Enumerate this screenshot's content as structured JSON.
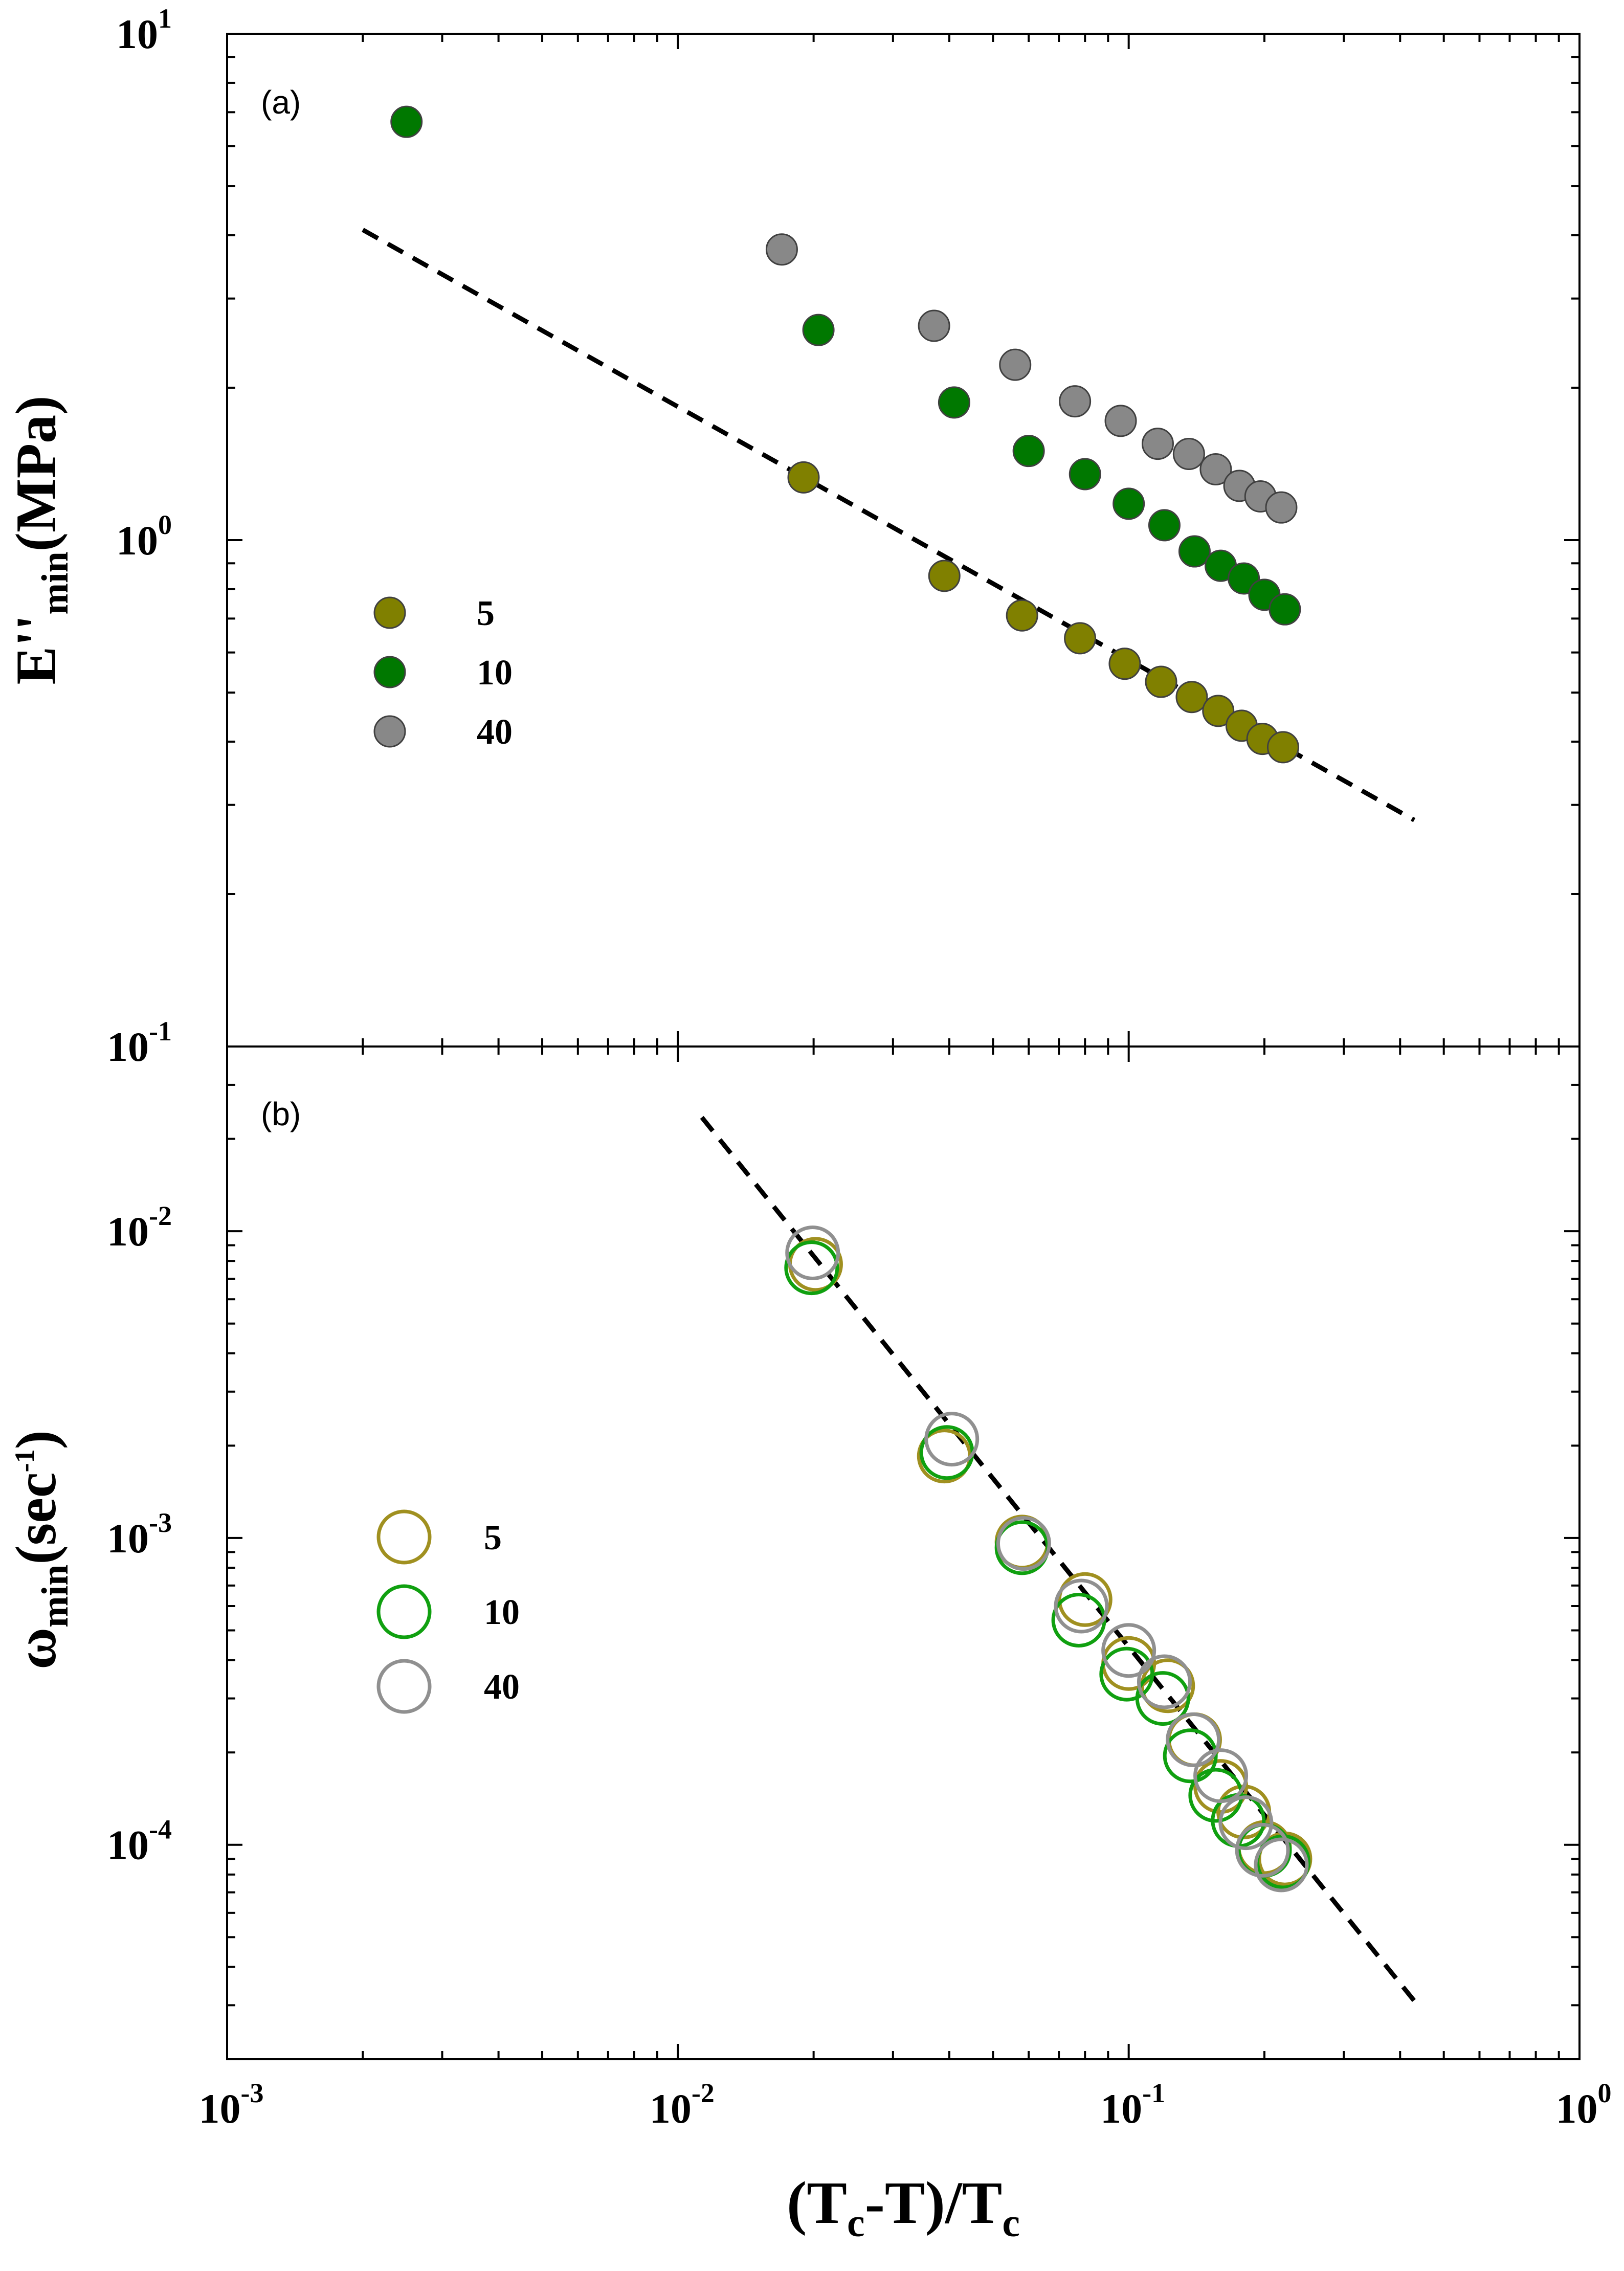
{
  "figure": {
    "x_axis_label": {
      "main": "(T",
      "sub1": "c",
      "mid": "-T)/T",
      "sub2": "c"
    },
    "x_tick_labels": [
      {
        "base": "10",
        "exp": "-3",
        "value": 0.001
      },
      {
        "base": "10",
        "exp": "-2",
        "value": 0.01
      },
      {
        "base": "10",
        "exp": "-1",
        "value": 0.1
      },
      {
        "base": "10",
        "exp": "0",
        "value": 1
      }
    ]
  },
  "chart_data": [
    {
      "type": "scatter",
      "panel_label": "(a)",
      "ylabel": {
        "main": "E''",
        "sub": "min",
        "unit": "(MPa)"
      },
      "xscale": "log",
      "yscale": "log",
      "xlim": [
        0.001,
        1
      ],
      "ylim": [
        0.1,
        10
      ],
      "y_tick_labels": [
        {
          "base": "10",
          "exp": "-1",
          "value": 0.1
        },
        {
          "base": "10",
          "exp": "0",
          "value": 1
        },
        {
          "base": "10",
          "exp": "1",
          "value": 10
        }
      ],
      "marker": "filled-circle",
      "series": [
        {
          "name": "5",
          "color": "#808000",
          "points": [
            [
              0.019,
              1.33
            ],
            [
              0.039,
              0.85
            ],
            [
              0.058,
              0.71
            ],
            [
              0.078,
              0.64
            ],
            [
              0.098,
              0.57
            ],
            [
              0.118,
              0.525
            ],
            [
              0.138,
              0.49
            ],
            [
              0.158,
              0.46
            ],
            [
              0.178,
              0.43
            ],
            [
              0.198,
              0.405
            ],
            [
              0.22,
              0.39
            ]
          ]
        },
        {
          "name": "10",
          "color": "#007800",
          "points": [
            [
              0.0025,
              6.7
            ],
            [
              0.0205,
              2.6
            ],
            [
              0.041,
              1.87
            ],
            [
              0.06,
              1.5
            ],
            [
              0.08,
              1.35
            ],
            [
              0.1,
              1.18
            ],
            [
              0.12,
              1.07
            ],
            [
              0.14,
              0.95
            ],
            [
              0.16,
              0.89
            ],
            [
              0.18,
              0.84
            ],
            [
              0.2,
              0.78
            ],
            [
              0.222,
              0.73
            ]
          ]
        },
        {
          "name": "40",
          "color": "#888888",
          "points": [
            [
              0.017,
              3.75
            ],
            [
              0.037,
              2.65
            ],
            [
              0.056,
              2.22
            ],
            [
              0.076,
              1.88
            ],
            [
              0.096,
              1.72
            ],
            [
              0.116,
              1.55
            ],
            [
              0.136,
              1.48
            ],
            [
              0.156,
              1.38
            ],
            [
              0.176,
              1.28
            ],
            [
              0.196,
              1.22
            ],
            [
              0.218,
              1.16
            ]
          ]
        }
      ],
      "fit_line": {
        "style": "dashed",
        "color": "#000000",
        "points": [
          [
            0.002,
            4.1
          ],
          [
            0.43,
            0.28
          ]
        ]
      },
      "legend": {
        "placement": "left-middle",
        "entries": [
          "5",
          "10",
          "40"
        ]
      }
    },
    {
      "type": "scatter",
      "panel_label": "(b)",
      "ylabel": {
        "main": "ω",
        "sub": "min",
        "unit_open": "(sec",
        "unit_exp": "-1",
        "unit_close": ")"
      },
      "xscale": "log",
      "yscale": "log",
      "xlim": [
        0.001,
        1
      ],
      "ylim": [
        2e-05,
        0.04
      ],
      "y_tick_labels": [
        {
          "base": "10",
          "exp": "-4",
          "value": 0.0001
        },
        {
          "base": "10",
          "exp": "-3",
          "value": 0.001
        },
        {
          "base": "10",
          "exp": "-2",
          "value": 0.01
        }
      ],
      "marker": "open-circle",
      "series": [
        {
          "name": "5",
          "color": "#a09020",
          "points": [
            [
              0.0202,
              0.0078
            ],
            [
              0.039,
              0.00185
            ],
            [
              0.058,
              0.00097
            ],
            [
              0.08,
              0.00063
            ],
            [
              0.1,
              0.00039
            ],
            [
              0.122,
              0.00033
            ],
            [
              0.14,
              0.00022
            ],
            [
              0.16,
              0.000155
            ],
            [
              0.18,
              0.000128
            ],
            [
              0.2,
              9.8e-05
            ],
            [
              0.222,
              9e-05
            ]
          ]
        },
        {
          "name": "10",
          "color": "#10a010",
          "points": [
            [
              0.0198,
              0.0076
            ],
            [
              0.0395,
              0.0019
            ],
            [
              0.058,
              0.00093
            ],
            [
              0.0775,
              0.00054
            ],
            [
              0.099,
              0.00036
            ],
            [
              0.119,
              0.0003
            ],
            [
              0.137,
              0.000195
            ],
            [
              0.156,
              0.000145
            ],
            [
              0.175,
              0.00012
            ],
            [
              0.2,
              9.6e-05
            ],
            [
              0.22,
              8.8e-05
            ]
          ]
        },
        {
          "name": "40",
          "color": "#909090",
          "points": [
            [
              0.0199,
              0.0085
            ],
            [
              0.0405,
              0.0021
            ],
            [
              0.0585,
              0.00096
            ],
            [
              0.0785,
              0.0006
            ],
            [
              0.1,
              0.00043
            ],
            [
              0.12,
              0.00034
            ],
            [
              0.139,
              0.00022
            ],
            [
              0.16,
              0.000168
            ],
            [
              0.182,
              0.000118
            ],
            [
              0.198,
              9.6e-05
            ],
            [
              0.218,
              8.6e-05
            ]
          ]
        }
      ],
      "fit_line": {
        "style": "dashed",
        "color": "#000000",
        "points": [
          [
            0.0113,
            0.0235
          ],
          [
            0.43,
            3.1e-05
          ]
        ]
      },
      "legend": {
        "placement": "left-middle",
        "entries": [
          "5",
          "10",
          "40"
        ]
      }
    }
  ]
}
